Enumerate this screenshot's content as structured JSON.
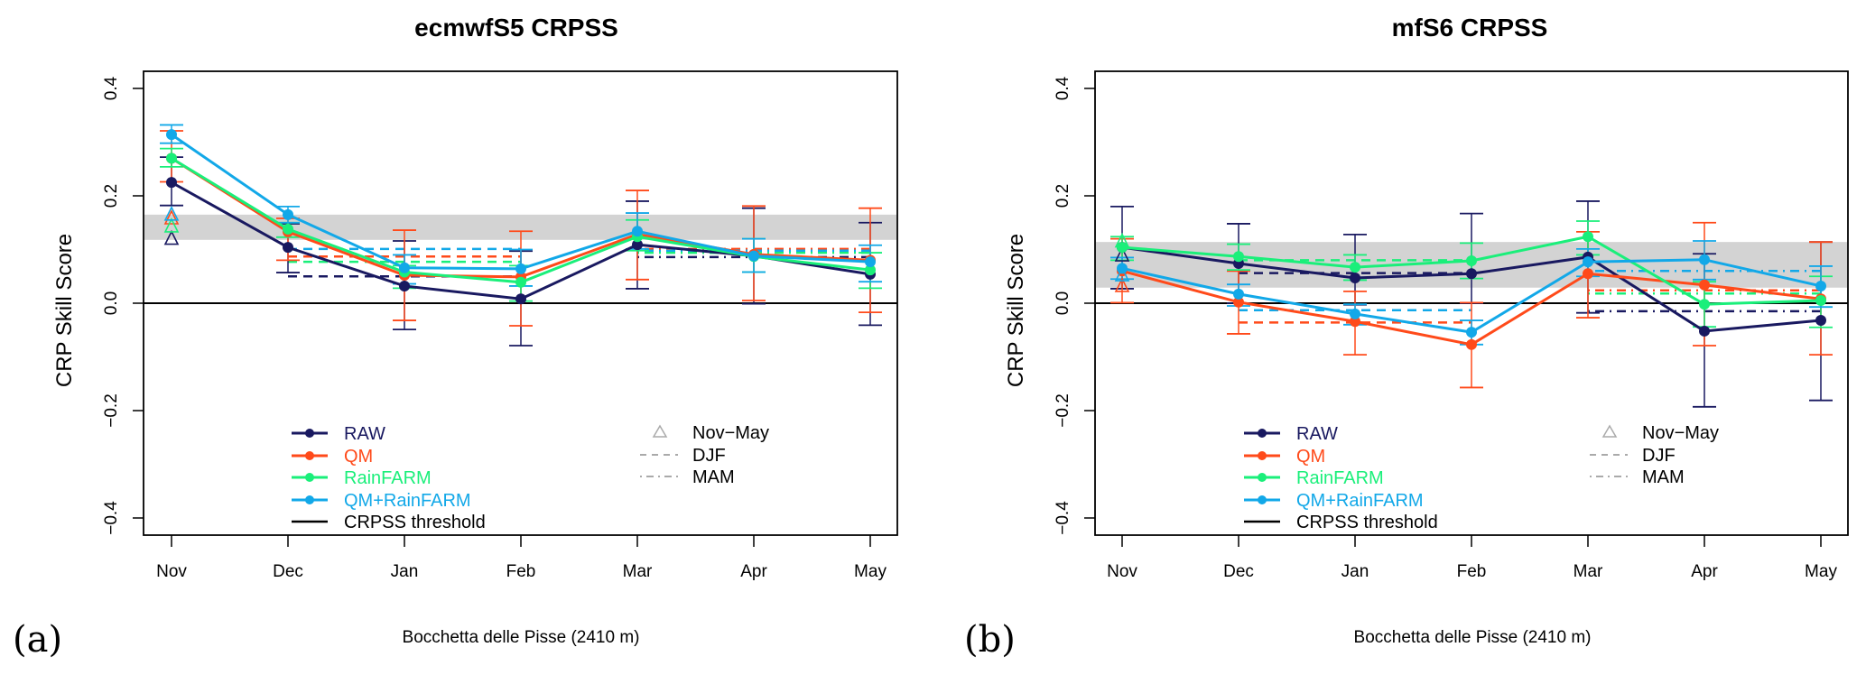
{
  "figure": {
    "panels_labels": [
      "(a)",
      "(b)"
    ]
  },
  "chart_data": [
    {
      "type": "line",
      "panel_label": "(a)",
      "title": "ecmwfS5 CRPSS",
      "xlabel": "Bocchetta delle Pisse (2410 m)",
      "ylabel": "CRP Skill Score",
      "categories": [
        "Nov",
        "Dec",
        "Jan",
        "Feb",
        "Mar",
        "Apr",
        "May"
      ],
      "ylim": [
        -0.43,
        0.435
      ],
      "yticks": [
        -0.4,
        -0.2,
        0.0,
        0.2,
        0.4
      ],
      "ytick_labels": [
        "−0.4",
        "−0.2",
        "0.0",
        "0.2",
        "0.4"
      ],
      "threshold": 0.0,
      "reference_band": [
        0.118,
        0.165
      ],
      "series": [
        {
          "name": "RAW",
          "color": "#191960",
          "values": [
            0.225,
            0.104,
            0.032,
            0.008,
            0.109,
            0.088,
            0.054
          ],
          "err_low": [
            0.182,
            0.057,
            -0.049,
            -0.079,
            0.027,
            -0.001,
            -0.041
          ],
          "err_high": [
            0.272,
            0.148,
            0.116,
            0.097,
            0.19,
            0.177,
            0.15
          ],
          "nov_may": 0.12,
          "djf": 0.05,
          "mam": 0.086
        },
        {
          "name": "QM",
          "color": "#ff4a1a",
          "values": [
            0.27,
            0.133,
            0.052,
            0.049,
            0.128,
            0.091,
            0.08
          ],
          "err_low": [
            0.226,
            0.08,
            -0.032,
            -0.042,
            0.044,
            0.005,
            -0.017
          ],
          "err_high": [
            0.321,
            0.158,
            0.136,
            0.134,
            0.21,
            0.181,
            0.177
          ],
          "nov_may": 0.158,
          "djf": 0.087,
          "mam": 0.101
        },
        {
          "name": "RainFARM",
          "color": "#1aef7a",
          "values": [
            0.27,
            0.138,
            0.058,
            0.039,
            0.124,
            0.087,
            0.062
          ],
          "err_low": [
            0.254,
            0.123,
            0.028,
            0.004,
            0.098,
            0.058,
            0.028
          ],
          "err_high": [
            0.288,
            0.15,
            0.07,
            0.07,
            0.155,
            0.12,
            0.094
          ],
          "nov_may": 0.143,
          "djf": 0.077,
          "mam": 0.094
        },
        {
          "name": "QM+RainFARM",
          "color": "#12a8e8",
          "values": [
            0.314,
            0.165,
            0.066,
            0.064,
            0.134,
            0.088,
            0.077
          ],
          "err_low": [
            0.298,
            0.15,
            0.036,
            0.032,
            0.101,
            0.058,
            0.04
          ],
          "err_high": [
            0.332,
            0.18,
            0.09,
            0.1,
            0.168,
            0.12,
            0.108
          ],
          "nov_may": 0.165,
          "djf": 0.101,
          "mam": 0.098
        }
      ],
      "legend": {
        "placement": "bottom-center",
        "items": [
          "RAW",
          "QM",
          "RainFARM",
          "QM+RainFARM",
          "CRPSS threshold"
        ],
        "style_items": [
          "Nov−May",
          "DJF",
          "MAM"
        ]
      }
    },
    {
      "type": "line",
      "panel_label": "(b)",
      "title": "mfS6 CRPSS",
      "xlabel": "Bocchetta delle Pisse (2410 m)",
      "ylabel": "CRP Skill Score",
      "categories": [
        "Nov",
        "Dec",
        "Jan",
        "Feb",
        "Mar",
        "Apr",
        "May"
      ],
      "ylim": [
        -0.43,
        0.435
      ],
      "yticks": [
        -0.4,
        -0.2,
        0.0,
        0.2,
        0.4
      ],
      "ytick_labels": [
        "−0.4",
        "−0.2",
        "0.0",
        "0.2",
        "0.4"
      ],
      "threshold": 0.0,
      "reference_band": [
        0.029,
        0.114
      ],
      "series": [
        {
          "name": "RAW",
          "color": "#191960",
          "values": [
            0.104,
            0.074,
            0.047,
            0.055,
            0.086,
            -0.052,
            -0.032
          ],
          "err_low": [
            0.027,
            0.0,
            -0.003,
            0.0,
            -0.018,
            -0.193,
            -0.181
          ],
          "err_high": [
            0.18,
            0.148,
            0.128,
            0.167,
            0.19,
            0.092,
            0.114
          ],
          "nov_may": 0.089,
          "djf": 0.056,
          "mam": -0.015
        },
        {
          "name": "QM",
          "color": "#ff4a1a",
          "values": [
            0.06,
            0.002,
            -0.034,
            -0.077,
            0.055,
            0.034,
            0.008
          ],
          "err_low": [
            0.001,
            -0.057,
            -0.096,
            -0.157,
            -0.027,
            -0.079,
            -0.096
          ],
          "err_high": [
            0.12,
            0.06,
            0.022,
            0.001,
            0.133,
            0.15,
            0.114
          ],
          "nov_may": 0.032,
          "djf": -0.036,
          "mam": 0.024
        },
        {
          "name": "RainFARM",
          "color": "#1aef7a",
          "values": [
            0.104,
            0.087,
            0.067,
            0.079,
            0.124,
            -0.002,
            0.005
          ],
          "err_low": [
            0.08,
            0.062,
            0.043,
            0.046,
            0.09,
            -0.044,
            -0.045
          ],
          "err_high": [
            0.124,
            0.11,
            0.09,
            0.112,
            0.153,
            0.04,
            0.05
          ],
          "nov_may": 0.115,
          "djf": 0.08,
          "mam": 0.018
        },
        {
          "name": "QM+RainFARM",
          "color": "#12a8e8",
          "values": [
            0.065,
            0.017,
            -0.02,
            -0.054,
            0.077,
            0.081,
            0.032
          ],
          "err_low": [
            0.045,
            -0.005,
            -0.04,
            -0.077,
            0.05,
            0.044,
            -0.007
          ],
          "err_high": [
            0.085,
            0.035,
            -0.002,
            -0.032,
            0.101,
            0.116,
            0.069
          ],
          "nov_may": 0.052,
          "djf": -0.013,
          "mam": 0.06
        }
      ],
      "legend": {
        "placement": "bottom-center",
        "items": [
          "RAW",
          "QM",
          "RainFARM",
          "QM+RainFARM",
          "CRPSS threshold"
        ],
        "style_items": [
          "Nov−May",
          "DJF",
          "MAM"
        ]
      }
    }
  ]
}
